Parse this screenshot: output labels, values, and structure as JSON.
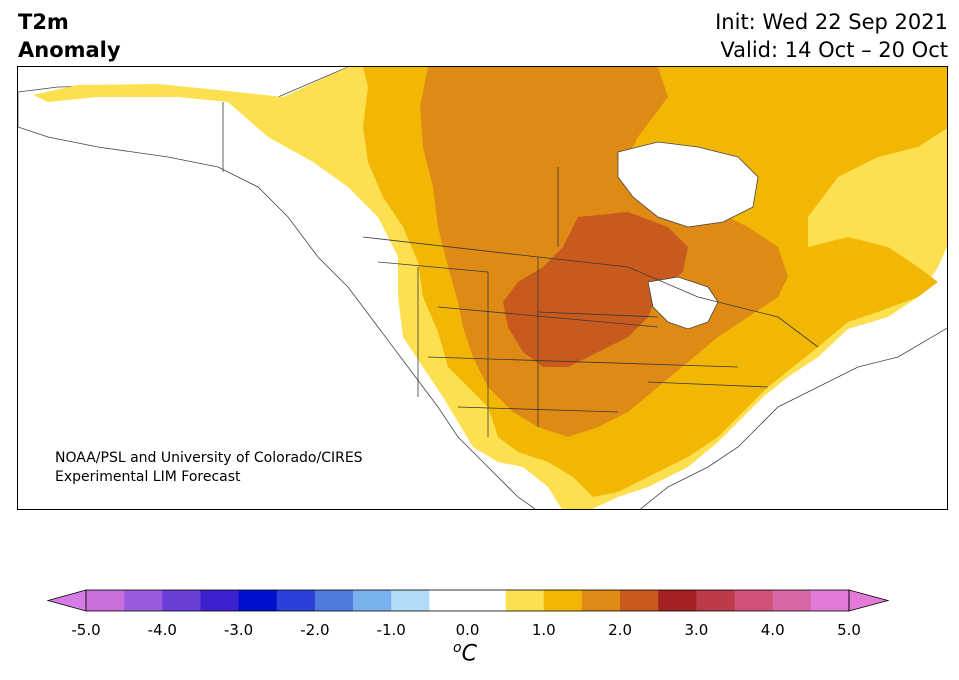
{
  "title": {
    "line1": "T2m",
    "line2": "Anomaly"
  },
  "forecast": {
    "init": "Init: Wed 22 Sep 2021",
    "valid": "Valid: 14 Oct – 20 Oct"
  },
  "credit": {
    "line1": "NOAA/PSL and University of Colorado/CIRES",
    "line2": "Experimental LIM Forecast"
  },
  "colorbar": {
    "ticks": [
      "-5.0",
      "-4.0",
      "-3.0",
      "-2.0",
      "-1.0",
      "0.0",
      "1.0",
      "2.0",
      "3.0",
      "4.0",
      "5.0"
    ],
    "unit_base": "C",
    "unit_sup": "o",
    "colors": [
      "#c86fdc",
      "#9b59de",
      "#6a3fd8",
      "#3c22cf",
      "#0010cc",
      "#2a40d8",
      "#4f7be0",
      "#7ab2ee",
      "#b1dcf8",
      "#ffffff",
      "#ffffff",
      "#fde050",
      "#f2b705",
      "#de8a14",
      "#c75a1c",
      "#a52020",
      "#bc3a4a",
      "#cf5279",
      "#d966a6",
      "#e07ad6"
    ],
    "under_color": "#d67ce6",
    "over_color": "#e57ad8"
  },
  "map_colors": {
    "ocean": "#ffffff",
    "neutral": "#ffffff",
    "light": "#fde050",
    "medium": "#f2b705",
    "strong": "#de8a14",
    "very_strong": "#c75a1c",
    "lakes": "#ffffff",
    "borders": "#3a3a3a"
  }
}
